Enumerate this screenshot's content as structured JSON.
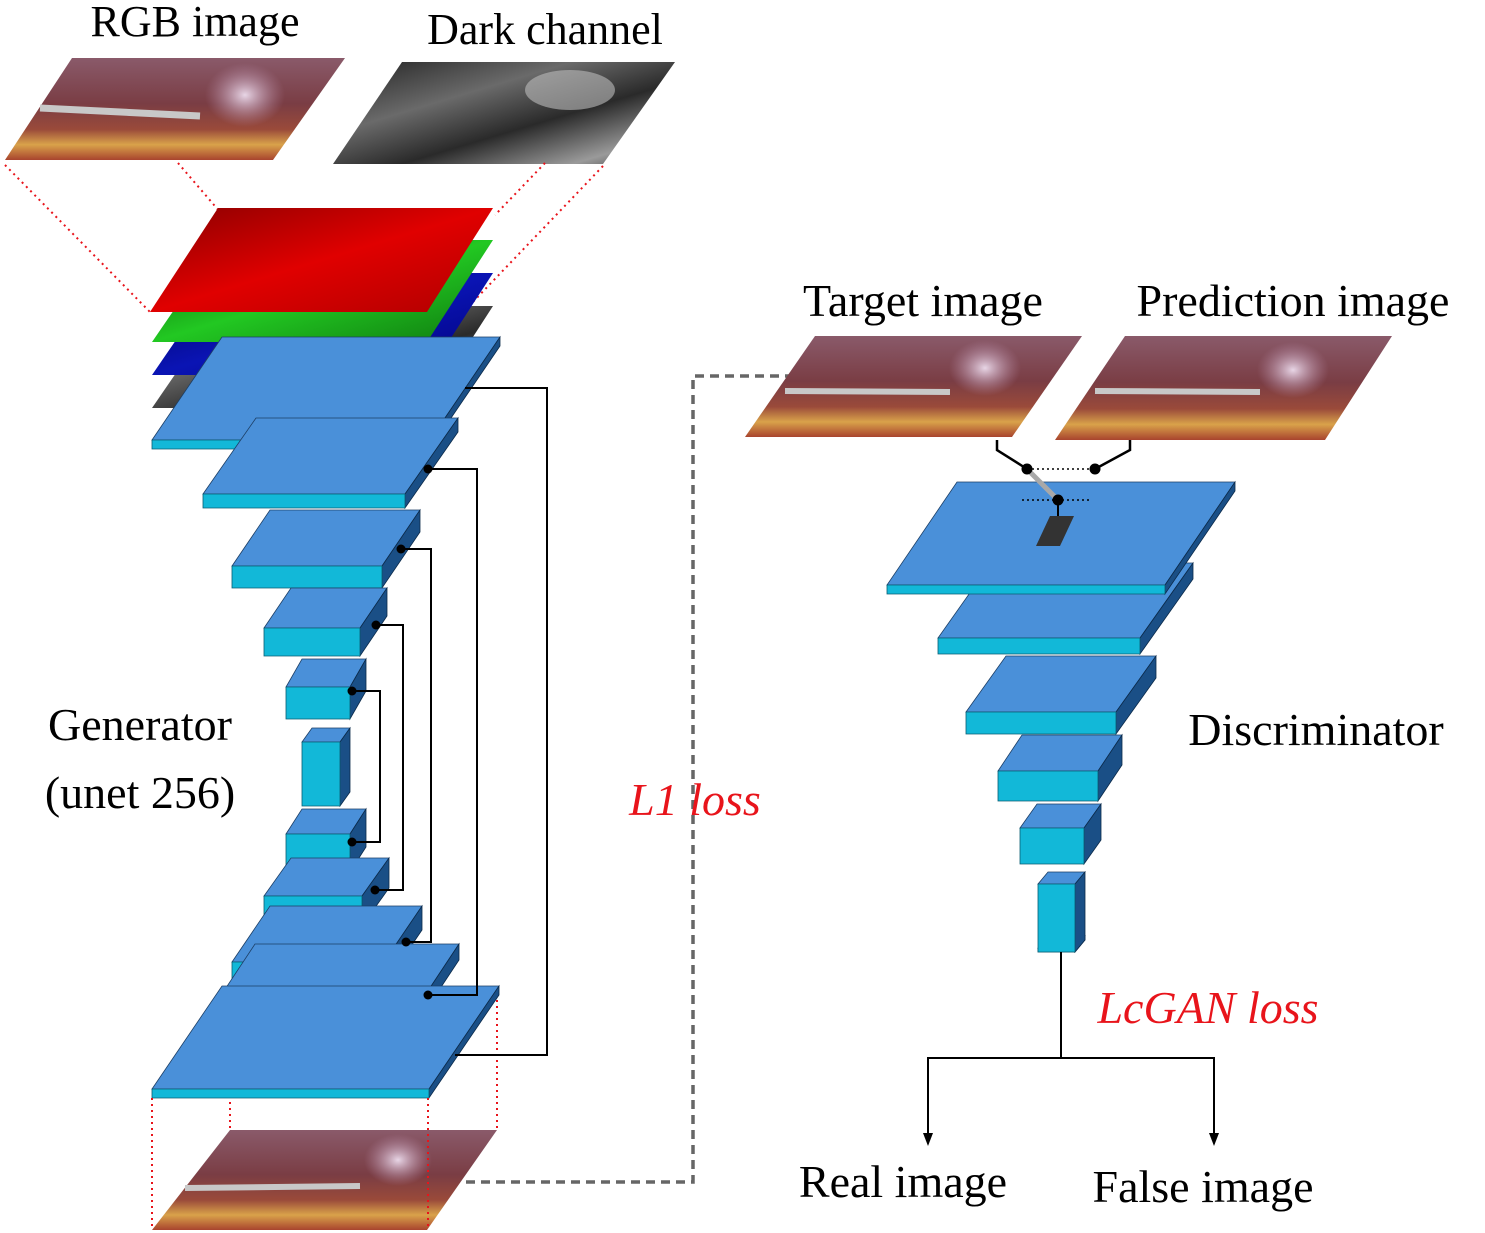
{
  "labels": {
    "rgb_image": "RGB image",
    "dark_channel": "Dark channel",
    "target_image": "Target image",
    "prediction_image": "Prediction image",
    "generator_line1": "Generator",
    "generator_line2": "(unet 256)",
    "discriminator": "Discriminator",
    "l1_loss": "L1 loss",
    "lcgan_loss": "LcGAN loss",
    "real_image": "Real image",
    "false_image": "False image"
  },
  "colors": {
    "layer_top": "#4a90d9",
    "layer_front": "#12b8d8",
    "layer_side": "#1a4f86",
    "loss_text": "#e8141b",
    "dotted_red": "#e8141b",
    "dashed_gray": "#666666",
    "channel_red": "#d40000",
    "channel_green": "#1ea81e",
    "channel_blue": "#0a14a0",
    "channel_dark": "#3a3a3a"
  },
  "icons": {
    "arrow": "arrow-down-icon",
    "junction": "junction-dot-icon"
  }
}
